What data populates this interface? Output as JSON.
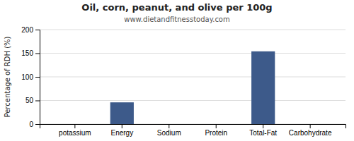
{
  "chart_data": {
    "type": "bar",
    "title": "Oil, corn, peanut, and olive per 100g",
    "subtitle": "www.dietandfitnesstoday.com",
    "ylabel": "Percentage of RDH (%)",
    "categories": [
      "potassium",
      "Energy",
      "Sodium",
      "Protein",
      "Total-Fat",
      "Carbohydrate"
    ],
    "values": [
      0,
      46,
      0,
      0,
      154,
      0
    ],
    "color": "#3d5a8a",
    "ylim": [
      0,
      200
    ],
    "yticks": [
      0,
      50,
      100,
      150,
      200
    ],
    "grid": true
  }
}
